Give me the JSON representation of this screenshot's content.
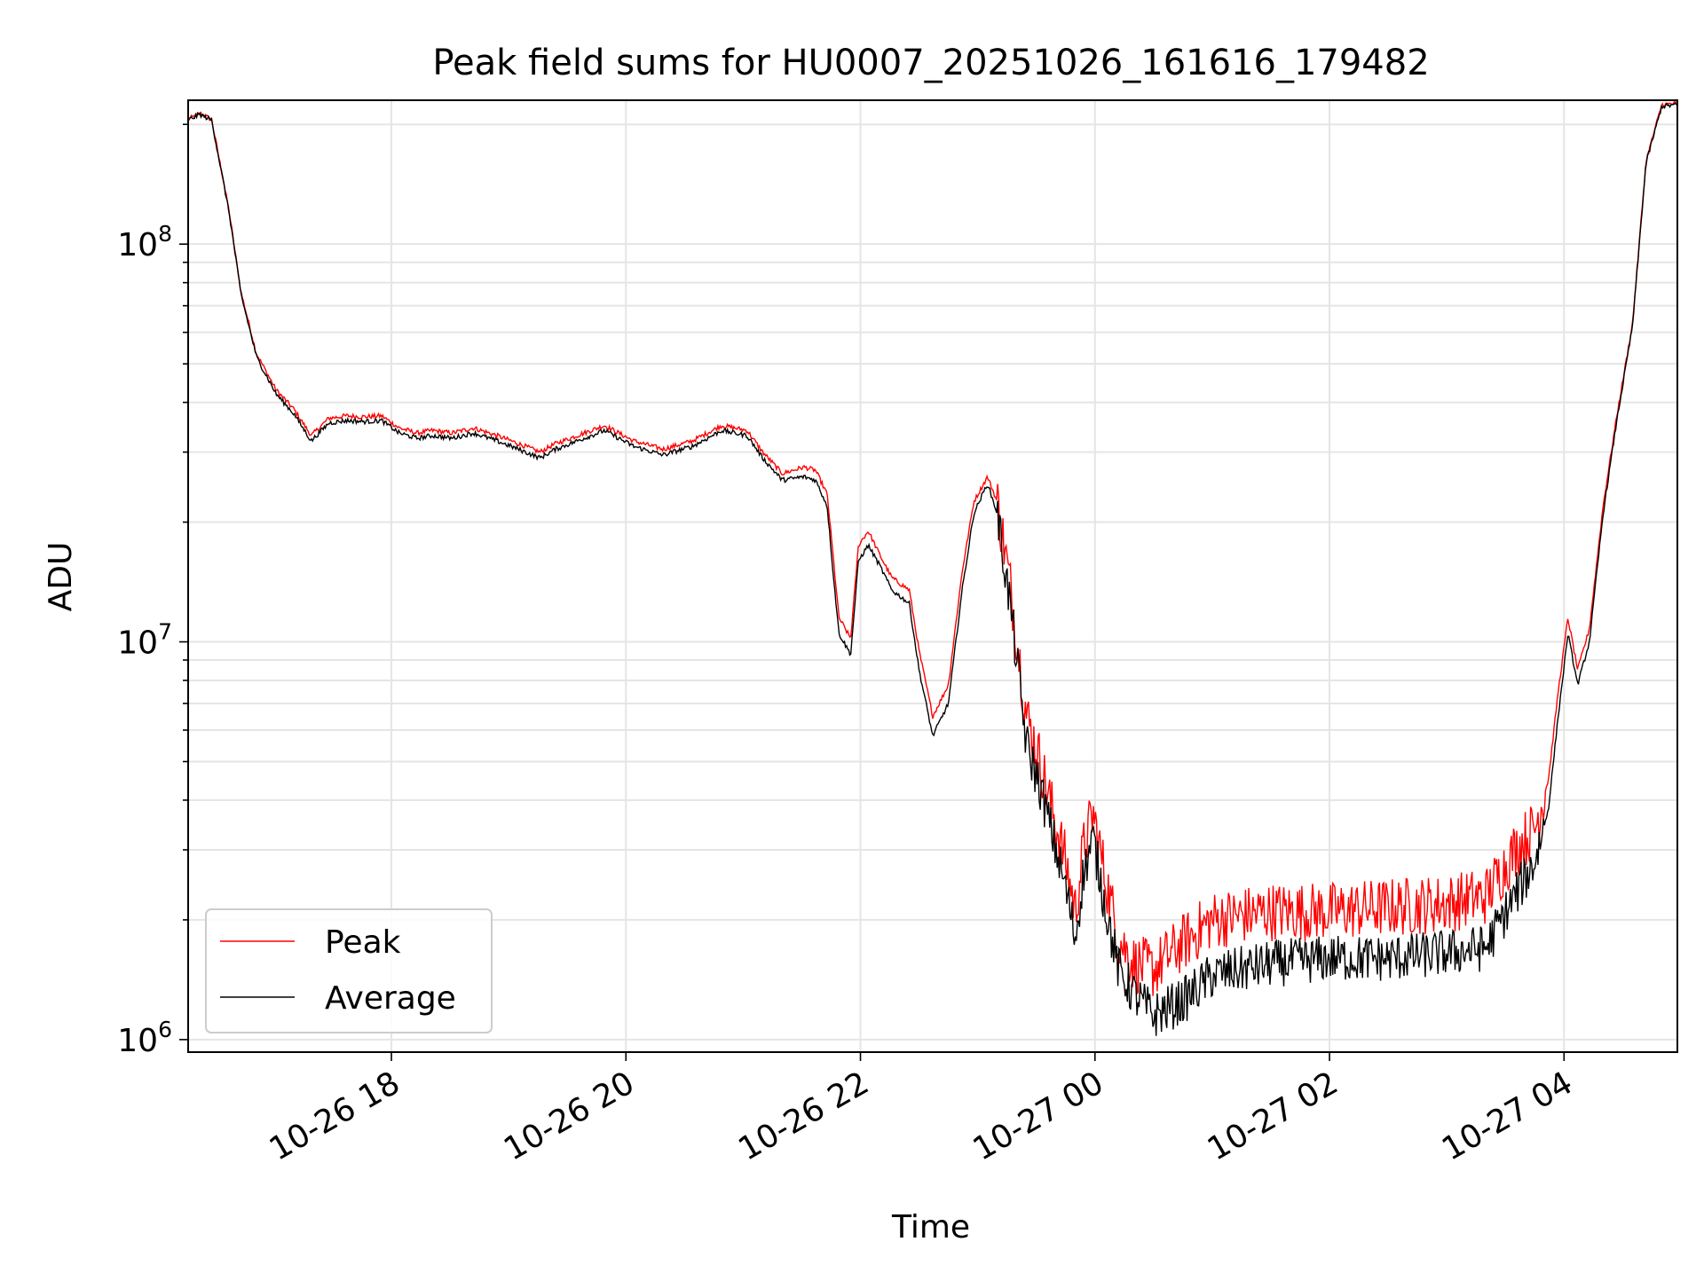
{
  "chart_data": {
    "type": "line",
    "title": "Peak field sums for HU0007_20251026_161616_179482",
    "xlabel": "Time",
    "ylabel": "ADU",
    "yscale": "log",
    "ylim": [
      930000,
      230000000
    ],
    "xlim": [
      "2025-10-26 16:16",
      "2025-10-27 04:58"
    ],
    "grid": true,
    "legend_position": "lower-left",
    "x_ticks": [
      {
        "label": "10-26 18",
        "t": "2025-10-26 18:00"
      },
      {
        "label": "10-26 20",
        "t": "2025-10-26 20:00"
      },
      {
        "label": "10-26 22",
        "t": "2025-10-26 22:00"
      },
      {
        "label": "10-27 00",
        "t": "2025-10-27 00:00"
      },
      {
        "label": "10-27 02",
        "t": "2025-10-27 02:00"
      },
      {
        "label": "10-27 04",
        "t": "2025-10-27 04:00"
      }
    ],
    "y_ticks": [
      {
        "mant": "10",
        "exp": "6",
        "value": 1000000
      },
      {
        "mant": "10",
        "exp": "7",
        "value": 10000000
      },
      {
        "mant": "10",
        "exp": "8",
        "value": 100000000
      }
    ],
    "series": [
      {
        "name": "Peak",
        "color": "#ff0000",
        "noise_band": true
      },
      {
        "name": "Average",
        "color": "#000000",
        "noise_band": false
      }
    ],
    "x": [
      "2025-10-26 16:16",
      "2025-10-26 16:22",
      "2025-10-26 16:28",
      "2025-10-26 16:37",
      "2025-10-26 16:43",
      "2025-10-26 16:51",
      "2025-10-26 17:01",
      "2025-10-26 17:10",
      "2025-10-26 17:19",
      "2025-10-26 17:28",
      "2025-10-26 17:37",
      "2025-10-26 17:46",
      "2025-10-26 17:55",
      "2025-10-26 18:04",
      "2025-10-26 18:13",
      "2025-10-26 18:21",
      "2025-10-26 18:31",
      "2025-10-26 18:42",
      "2025-10-26 18:54",
      "2025-10-26 19:05",
      "2025-10-26 19:16",
      "2025-10-26 19:24",
      "2025-10-26 19:35",
      "2025-10-26 19:49",
      "2025-10-26 20:04",
      "2025-10-26 20:19",
      "2025-10-26 20:34",
      "2025-10-26 20:49",
      "2025-10-26 21:02",
      "2025-10-26 21:10",
      "2025-10-26 21:20",
      "2025-10-26 21:31",
      "2025-10-26 21:37",
      "2025-10-26 21:43",
      "2025-10-26 21:46",
      "2025-10-26 21:49",
      "2025-10-26 21:55",
      "2025-10-26 21:59",
      "2025-10-26 22:04",
      "2025-10-26 22:10",
      "2025-10-26 22:16",
      "2025-10-26 22:25",
      "2025-10-26 22:30",
      "2025-10-26 22:37",
      "2025-10-26 22:45",
      "2025-10-26 22:52",
      "2025-10-26 22:58",
      "2025-10-26 23:05",
      "2025-10-26 23:10",
      "2025-10-26 23:17",
      "2025-10-26 23:25",
      "2025-10-26 23:32",
      "2025-10-26 23:38",
      "2025-10-26 23:45",
      "2025-10-26 23:50",
      "2025-10-26 23:54",
      "2025-10-26 23:59",
      "2025-10-27 00:05",
      "2025-10-27 00:12",
      "2025-10-27 00:20",
      "2025-10-27 00:30",
      "2025-10-27 00:45",
      "2025-10-27 01:00",
      "2025-10-27 01:30",
      "2025-10-27 02:00",
      "2025-10-27 02:30",
      "2025-10-27 03:00",
      "2025-10-27 03:20",
      "2025-10-27 03:35",
      "2025-10-27 03:45",
      "2025-10-27 03:52",
      "2025-10-27 03:57",
      "2025-10-27 04:02",
      "2025-10-27 04:07",
      "2025-10-27 04:13",
      "2025-10-27 04:20",
      "2025-10-27 04:27",
      "2025-10-27 04:35",
      "2025-10-27 04:42",
      "2025-10-27 04:50",
      "2025-10-27 04:58"
    ],
    "values_average": [
      205000000,
      212000000,
      205000000,
      120000000,
      75000000,
      52000000,
      42000000,
      37500000,
      32000000,
      35500000,
      36000000,
      35800000,
      36000000,
      33500000,
      32500000,
      33000000,
      32500000,
      33500000,
      32000000,
      30500000,
      29000000,
      30500000,
      32000000,
      34000000,
      31000000,
      29500000,
      31000000,
      34000000,
      33000000,
      29000000,
      25500000,
      26000000,
      25500000,
      22000000,
      15000000,
      10500000,
      9300000,
      16000000,
      17500000,
      15500000,
      13500000,
      12500000,
      8500000,
      5800000,
      7000000,
      13500000,
      21000000,
      25000000,
      21000000,
      12000000,
      5500000,
      4300000,
      3300000,
      2400000,
      1800000,
      2600000,
      3200000,
      2200000,
      1500000,
      1300000,
      1150000,
      1250000,
      1450000,
      1550000,
      1600000,
      1600000,
      1650000,
      1700000,
      2300000,
      2800000,
      3800000,
      6500000,
      10500000,
      7800000,
      10000000,
      21000000,
      36000000,
      62000000,
      160000000,
      222000000,
      224000000
    ],
    "values_peak": [
      206000000,
      213000000,
      206000000,
      121000000,
      76000000,
      53000000,
      43000000,
      38500000,
      33000000,
      36500000,
      37000000,
      36800000,
      37000000,
      34500000,
      33500000,
      34000000,
      33500000,
      34500000,
      33000000,
      31500000,
      30000000,
      31500000,
      33000000,
      35000000,
      32000000,
      30500000,
      32000000,
      35000000,
      34000000,
      30000000,
      26500000,
      27500000,
      27000000,
      23500000,
      16500000,
      11500000,
      10200000,
      17500000,
      19000000,
      16500000,
      14500000,
      13500000,
      9500000,
      6500000,
      7800000,
      15000000,
      22500000,
      26000000,
      22500000,
      13500000,
      6500000,
      5000000,
      3800000,
      2800000,
      2100000,
      3000000,
      3700000,
      2600000,
      1800000,
      1550000,
      1500000,
      1750000,
      2000000,
      2100000,
      2100000,
      2150000,
      2200000,
      2300000,
      3000000,
      3400000,
      4500000,
      7500000,
      11500000,
      8500000,
      10800000,
      22000000,
      37000000,
      63000000,
      162000000,
      224000000,
      226000000
    ]
  }
}
